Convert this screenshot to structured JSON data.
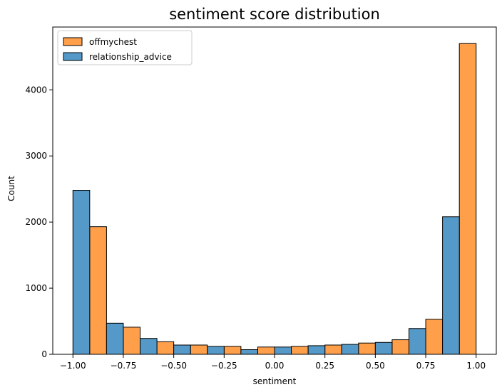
{
  "chart_data": {
    "type": "bar",
    "title": "sentiment score distribution",
    "xlabel": "sentiment",
    "ylabel": "Count",
    "xlim": [
      -1.1,
      1.1
    ],
    "ylim": [
      0,
      4950
    ],
    "xticks": [
      -1.0,
      -0.75,
      -0.5,
      -0.25,
      0.0,
      0.25,
      0.5,
      0.75,
      1.0
    ],
    "xtick_labels": [
      "−1.00",
      "−0.75",
      "−0.50",
      "−0.25",
      "0.00",
      "0.25",
      "0.50",
      "0.75",
      "1.00"
    ],
    "yticks": [
      0,
      1000,
      2000,
      3000,
      4000
    ],
    "ytick_labels": [
      "0",
      "1000",
      "2000",
      "3000",
      "4000"
    ],
    "legend_position": "top-left",
    "series": [
      {
        "name": "offmychest",
        "color": "#ff9f4a",
        "bars": [
          {
            "x0": -0.9167,
            "x1": -0.8333,
            "value": 1930
          },
          {
            "x0": -0.75,
            "x1": -0.6667,
            "value": 410
          },
          {
            "x0": -0.5833,
            "x1": -0.5,
            "value": 190
          },
          {
            "x0": -0.4167,
            "x1": -0.3333,
            "value": 140
          },
          {
            "x0": -0.25,
            "x1": -0.1667,
            "value": 120
          },
          {
            "x0": -0.0833,
            "x1": 0.0,
            "value": 110
          },
          {
            "x0": 0.0833,
            "x1": 0.1667,
            "value": 120
          },
          {
            "x0": 0.25,
            "x1": 0.3333,
            "value": 140
          },
          {
            "x0": 0.4167,
            "x1": 0.5,
            "value": 170
          },
          {
            "x0": 0.5833,
            "x1": 0.6667,
            "value": 220
          },
          {
            "x0": 0.75,
            "x1": 0.8333,
            "value": 530
          },
          {
            "x0": 0.9167,
            "x1": 1.0,
            "value": 4700
          }
        ]
      },
      {
        "name": "relationship_advice",
        "color": "#5499c7",
        "bars": [
          {
            "x0": -1.0,
            "x1": -0.9167,
            "value": 2480
          },
          {
            "x0": -0.8333,
            "x1": -0.75,
            "value": 470
          },
          {
            "x0": -0.6667,
            "x1": -0.5833,
            "value": 240
          },
          {
            "x0": -0.5,
            "x1": -0.4167,
            "value": 140
          },
          {
            "x0": -0.3333,
            "x1": -0.25,
            "value": 120
          },
          {
            "x0": -0.1667,
            "x1": -0.0833,
            "value": 70
          },
          {
            "x0": 0.0,
            "x1": 0.0833,
            "value": 110
          },
          {
            "x0": 0.1667,
            "x1": 0.25,
            "value": 130
          },
          {
            "x0": 0.3333,
            "x1": 0.4167,
            "value": 150
          },
          {
            "x0": 0.5,
            "x1": 0.5833,
            "value": 180
          },
          {
            "x0": 0.6667,
            "x1": 0.75,
            "value": 390
          },
          {
            "x0": 0.8333,
            "x1": 0.9167,
            "value": 2080
          }
        ]
      }
    ]
  }
}
